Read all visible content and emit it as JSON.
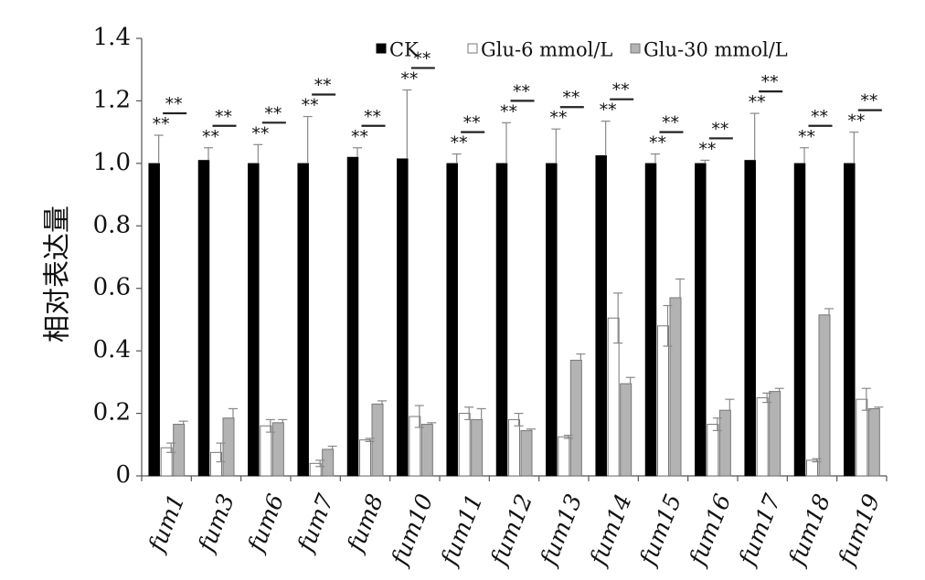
{
  "chart_data": {
    "type": "bar",
    "title": "",
    "xlabel": "",
    "ylabel": "相对表达量",
    "ylim": [
      0,
      1.4
    ],
    "yticks": [
      "0",
      "0.2",
      "0.4",
      "0.6",
      "0.8",
      "1.0",
      "1.2",
      "1.4"
    ],
    "ytick_values": [
      0,
      0.2,
      0.4,
      0.6,
      0.8,
      1.0,
      1.2,
      1.4
    ],
    "legend_position": "top",
    "categories": [
      "fum1",
      "fum3",
      "fum6",
      "fum7",
      "fum8",
      "fum10",
      "fum11",
      "fum12",
      "fum13",
      "fum14",
      "fum15",
      "fum16",
      "fum17",
      "fum18",
      "fum19"
    ],
    "series": [
      {
        "name": "CK",
        "color": "#000000",
        "values": [
          1.0,
          1.01,
          1.0,
          1.0,
          1.02,
          1.015,
          1.0,
          1.0,
          1.0,
          1.025,
          1.0,
          1.0,
          1.01,
          1.0,
          1.0
        ],
        "errors": [
          0.09,
          0.04,
          0.06,
          0.15,
          0.03,
          0.22,
          0.03,
          0.13,
          0.11,
          0.11,
          0.03,
          0.01,
          0.15,
          0.05,
          0.1
        ]
      },
      {
        "name": "Glu-6 mmol/L",
        "color": "#ffffff",
        "values": [
          0.09,
          0.075,
          0.16,
          0.04,
          0.115,
          0.19,
          0.2,
          0.18,
          0.125,
          0.505,
          0.48,
          0.165,
          0.25,
          0.05,
          0.245
        ],
        "errors": [
          0.015,
          0.03,
          0.02,
          0.01,
          0.005,
          0.035,
          0.02,
          0.02,
          0.005,
          0.08,
          0.065,
          0.02,
          0.015,
          0.005,
          0.035
        ]
      },
      {
        "name": "Glu-30 mmol/L",
        "color": "#b3b3b3",
        "values": [
          0.165,
          0.185,
          0.17,
          0.085,
          0.23,
          0.165,
          0.18,
          0.145,
          0.37,
          0.295,
          0.57,
          0.21,
          0.27,
          0.515,
          0.215
        ],
        "errors": [
          0.01,
          0.03,
          0.01,
          0.01,
          0.01,
          0.005,
          0.035,
          0.005,
          0.02,
          0.02,
          0.06,
          0.035,
          0.01,
          0.02,
          0.005
        ]
      }
    ],
    "annotations": {
      "label": "**",
      "significance_upper": [
        true,
        true,
        true,
        true,
        true,
        true,
        true,
        true,
        true,
        true,
        true,
        true,
        true,
        true,
        true
      ],
      "significance_lower": [
        true,
        true,
        true,
        true,
        true,
        true,
        true,
        true,
        true,
        true,
        true,
        true,
        true,
        true,
        true
      ]
    }
  }
}
